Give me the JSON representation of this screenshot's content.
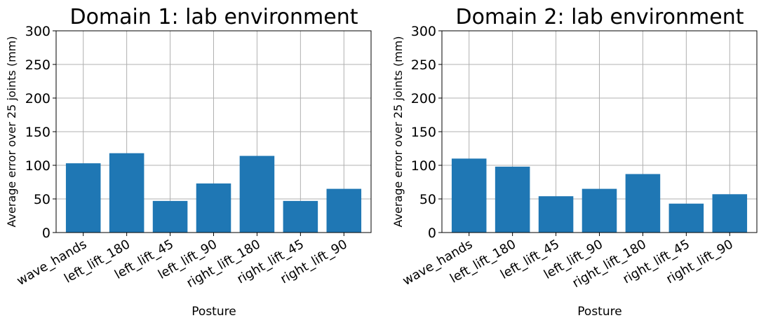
{
  "colors": {
    "bar": "#1f77b4",
    "grid": "#b0b0b0",
    "axis": "#000000"
  },
  "chart_data": [
    {
      "type": "bar",
      "title": "Domain 1: lab environment",
      "xlabel": "Posture",
      "ylabel": "Average error over 25 joints (mm)",
      "categories": [
        "wave_hands",
        "left_lift_180",
        "left_lift_45",
        "left_lift_90",
        "right_lift_180",
        "right_lift_45",
        "right_lift_90"
      ],
      "values": [
        103,
        118,
        47,
        73,
        114,
        47,
        65
      ],
      "ylim": [
        0,
        300
      ],
      "yticks": [
        "0",
        "50",
        "100",
        "150",
        "200",
        "250",
        "300"
      ],
      "grid": true
    },
    {
      "type": "bar",
      "title": "Domain 2: lab environment",
      "xlabel": "Posture",
      "ylabel": "Average error over 25 joints (mm)",
      "categories": [
        "wave_hands",
        "left_lift_180",
        "left_lift_45",
        "left_lift_90",
        "right_lift_180",
        "right_lift_45",
        "right_lift_90"
      ],
      "values": [
        110,
        98,
        54,
        65,
        87,
        43,
        57
      ],
      "ylim": [
        0,
        300
      ],
      "yticks": [
        "0",
        "50",
        "100",
        "150",
        "200",
        "250",
        "300"
      ],
      "grid": true
    }
  ]
}
